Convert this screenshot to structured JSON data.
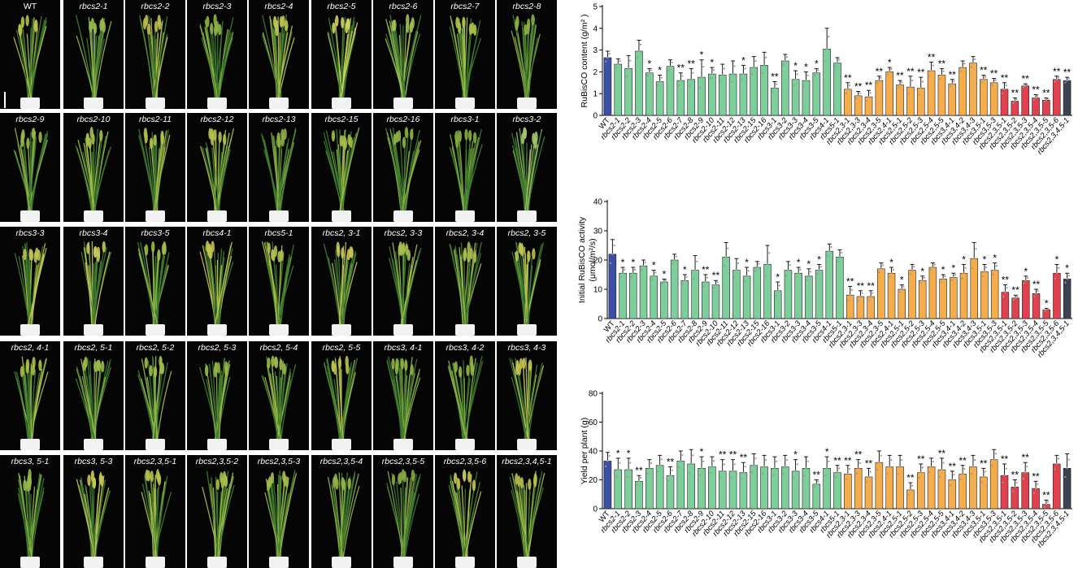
{
  "plants": [
    {
      "label": "WT",
      "tone": "#b8c24a"
    },
    {
      "label": "rbcs2-1",
      "tone": "#98b948"
    },
    {
      "label": "rbcs2-2",
      "tone": "#c0c050"
    },
    {
      "label": "rbcs2-3",
      "tone": "#8fb444"
    },
    {
      "label": "rbcs2-4",
      "tone": "#c2c650"
    },
    {
      "label": "rbcs2-5",
      "tone": "#d2d060"
    },
    {
      "label": "rbcs2-6",
      "tone": "#a0c052"
    },
    {
      "label": "rbcs2-7",
      "tone": "#b0c44c"
    },
    {
      "label": "rbcs2-8",
      "tone": "#8bb042"
    },
    {
      "label": "rbcs2-9",
      "tone": "#9cb84a"
    },
    {
      "label": "rbcs2-10",
      "tone": "#a8c04c"
    },
    {
      "label": "rbcs2-11",
      "tone": "#b4c24e"
    },
    {
      "label": "rbcs2-12",
      "tone": "#b6c250"
    },
    {
      "label": "rbcs2-13",
      "tone": "#8eae46"
    },
    {
      "label": "rbcs2-15",
      "tone": "#a6bc4a"
    },
    {
      "label": "rbcs2-16",
      "tone": "#90b446"
    },
    {
      "label": "rbcs3-1",
      "tone": "#86ac44"
    },
    {
      "label": "rbcs3-2",
      "tone": "#a6c46c"
    },
    {
      "label": "rbcs3-3",
      "tone": "#c0c454"
    },
    {
      "label": "rbcs3-4",
      "tone": "#c8c65a"
    },
    {
      "label": "rbcs3-5",
      "tone": "#9cbc4c"
    },
    {
      "label": "rbcs4-1",
      "tone": "#c4c450"
    },
    {
      "label": "rbcs5-1",
      "tone": "#b2c04c"
    },
    {
      "label": "rbcs2, 3-1",
      "tone": "#c6c456"
    },
    {
      "label": "rbcs2, 3-3",
      "tone": "#a8c04e"
    },
    {
      "label": "rbcs2, 3-4",
      "tone": "#aabe4e"
    },
    {
      "label": "rbcs2, 3-5",
      "tone": "#bec452"
    },
    {
      "label": "rbcs2, 4-1",
      "tone": "#aebe4c"
    },
    {
      "label": "rbcs2, 5-1",
      "tone": "#9cba4a"
    },
    {
      "label": "rbcs2, 5-2",
      "tone": "#a2bc4c"
    },
    {
      "label": "rbcs2, 5-3",
      "tone": "#96b648"
    },
    {
      "label": "rbcs2, 5-4",
      "tone": "#9cba48"
    },
    {
      "label": "rbcs2, 5-5",
      "tone": "#b8c250"
    },
    {
      "label": "rbcs3, 4-1",
      "tone": "#92b446"
    },
    {
      "label": "rbcs3, 4-2",
      "tone": "#94b446"
    },
    {
      "label": "rbcs3, 4-3",
      "tone": "#c2c452"
    },
    {
      "label": "rbcs3, 5-1",
      "tone": "#98b848"
    },
    {
      "label": "rbcs3, 5-3",
      "tone": "#c8c65a"
    },
    {
      "label": "rbcs2,3,5-1",
      "tone": "#b8c24e"
    },
    {
      "label": "rbcs2,3,5-2",
      "tone": "#a8be4c"
    },
    {
      "label": "rbcs2,3,5-3",
      "tone": "#a4bc4c"
    },
    {
      "label": "rbcs2,3,5-4",
      "tone": "#94b444"
    },
    {
      "label": "rbcs2,3,5-5",
      "tone": "#86a844"
    },
    {
      "label": "rbcs2,3,5-6",
      "tone": "#c4c454"
    },
    {
      "label": "rbcs2,3,4,5-1",
      "tone": "#b2c04e"
    }
  ],
  "colors": {
    "wt": "#3a4fa5",
    "single": "#7ccf9a",
    "double": "#f5ad4b",
    "triple": "#e0414e",
    "quad": "#3b4350"
  },
  "chart_data": [
    {
      "type": "bar",
      "ylabel": "RuBisCO content (g/m² )",
      "ylim": [
        0,
        5
      ],
      "yticks": [
        0,
        1,
        2,
        3,
        4,
        5
      ],
      "categories": [
        "WT",
        "rbcs2-1",
        "rbcs2-2",
        "rbcs2-3",
        "rbcs2-4",
        "rbcs2-5",
        "rbcs2-6",
        "rbcs2-7",
        "rbcs2-8",
        "rbcs2-9",
        "rbcs2-10",
        "rbcs2-11",
        "rbcs2-12",
        "rbcs2-13",
        "rbcs2-15",
        "rbcs2-16",
        "rbcs3-1",
        "rbcs3-2",
        "rbcs3-3",
        "rbcs3-4",
        "rbcs3-5",
        "rbcs4-1",
        "rbcs5-1",
        "rbcs2,3-1",
        "rbcs2,3-3",
        "rbcs2,3-4",
        "rbcs2,3-5",
        "rbcs2,4-1",
        "rbcs2,5-1",
        "rbcs2,5-2",
        "rbcs2,5-3",
        "rbcs2,5-4",
        "rbcs2,5-5",
        "rbcs3,4-1",
        "rbcs3,4-2",
        "rbcs3,4-3",
        "rbcs3,5-1",
        "rbcs3,5-3",
        "rbcs2,3,5-1",
        "rbcs2,3,5-2",
        "rbcs2,3,5-3",
        "rbcs2,3,5-4",
        "rbcs2,3,5-5",
        "rbcs2,3,5-6",
        "rbcs2,3,4,5-1"
      ],
      "values": [
        2.65,
        2.35,
        2.15,
        2.95,
        1.95,
        1.55,
        2.25,
        1.6,
        1.65,
        1.75,
        1.9,
        1.85,
        1.9,
        1.9,
        2.2,
        2.3,
        1.25,
        2.5,
        1.65,
        1.6,
        1.95,
        3.05,
        2.4,
        1.2,
        0.9,
        0.85,
        1.6,
        2.0,
        1.4,
        1.3,
        1.25,
        2.05,
        1.85,
        1.45,
        2.2,
        2.4,
        1.65,
        1.5,
        1.2,
        0.65,
        1.35,
        0.8,
        0.7,
        1.65,
        1.6
      ],
      "errors": [
        0.3,
        0.25,
        0.6,
        0.5,
        0.2,
        0.3,
        0.3,
        0.35,
        0.5,
        0.8,
        0.3,
        0.5,
        0.6,
        0.4,
        0.5,
        0.6,
        0.3,
        0.3,
        0.4,
        0.4,
        0.2,
        0.95,
        0.25,
        0.3,
        0.2,
        0.3,
        0.2,
        0.2,
        0.2,
        0.5,
        0.5,
        0.4,
        0.3,
        0.2,
        0.3,
        0.3,
        0.2,
        0.2,
        0.3,
        0.15,
        0.1,
        0.15,
        0.1,
        0.15,
        0.15
      ],
      "significance": [
        "",
        "",
        "",
        "",
        "*",
        "*",
        "",
        "**",
        "**",
        "*",
        "*",
        "",
        "",
        "*",
        "",
        "",
        "**",
        "",
        "*",
        "*",
        "*",
        "",
        "",
        "**",
        "**",
        "**",
        "**",
        "*",
        "**",
        "**",
        "**",
        "**",
        "**",
        "**",
        "",
        "",
        "**",
        "**",
        "**",
        "**",
        "**",
        "**",
        "**",
        "**",
        "**"
      ],
      "groups": [
        "wt",
        "single",
        "single",
        "single",
        "single",
        "single",
        "single",
        "single",
        "single",
        "single",
        "single",
        "single",
        "single",
        "single",
        "single",
        "single",
        "single",
        "single",
        "single",
        "single",
        "single",
        "single",
        "single",
        "double",
        "double",
        "double",
        "double",
        "double",
        "double",
        "double",
        "double",
        "double",
        "double",
        "double",
        "double",
        "double",
        "double",
        "double",
        "triple",
        "triple",
        "triple",
        "triple",
        "triple",
        "triple",
        "quad"
      ]
    },
    {
      "type": "bar",
      "ylabel": "Initial RuBisCO activity",
      "ylabel2": "(μmol/m²/s)",
      "ylim": [
        0,
        40
      ],
      "yticks": [
        0,
        10,
        20,
        30,
        40
      ],
      "categories": [
        "WT",
        "rbcs2-1",
        "rbcs2-2",
        "rbcs2-3",
        "rbcs2-4",
        "rbcs2-5",
        "rbcs2-6",
        "rbcs2-7",
        "rbcs2-8",
        "rbcs2-9",
        "rbcs2-10",
        "rbcs2-11",
        "rbcs2-12",
        "rbcs2-13",
        "rbcs2-15",
        "rbcs2-16",
        "rbcs3-1",
        "rbcs3-2",
        "rbcs3-3",
        "rbcs3-4",
        "rbcs3-5",
        "rbcs4-1",
        "rbcs5-1",
        "rbcs2,3-1",
        "rbcs2,3-3",
        "rbcs2,3-4",
        "rbcs2,3-5",
        "rbcs2,4-1",
        "rbcs2,5-1",
        "rbcs2,5-2",
        "rbcs2,5-3",
        "rbcs2,5-4",
        "rbcs2,5-5",
        "rbcs3,4-1",
        "rbcs3,4-2",
        "rbcs3,4-3",
        "rbcs3,5-1",
        "rbcs3,5-3",
        "rbcs2,3,5-1",
        "rbcs2,3,5-2",
        "rbcs2,3,5-3",
        "rbcs2,3,5-4",
        "rbcs2,3,5-5",
        "rbcs2,3,5-6",
        "rbcs2,3,4,5-1"
      ],
      "values": [
        22,
        15.5,
        15.5,
        18,
        14.5,
        12.5,
        20,
        13,
        16.5,
        12.5,
        11.5,
        21,
        16.5,
        14.5,
        17.5,
        18.5,
        9.5,
        16.5,
        15.5,
        14.5,
        16.5,
        23,
        21,
        8,
        7.5,
        7.5,
        17,
        15.5,
        10,
        16.5,
        13,
        17.5,
        13.5,
        14,
        15.5,
        20.5,
        16,
        16.5,
        9,
        7,
        13,
        8.5,
        3,
        15.5,
        13.5
      ],
      "errors": [
        5,
        2,
        2,
        2,
        2,
        1,
        2,
        2,
        5,
        2.5,
        1.5,
        5,
        4,
        3,
        2,
        6.5,
        3,
        3,
        2,
        2.5,
        2,
        2.5,
        2.5,
        3,
        2,
        2,
        2,
        2,
        1.5,
        2,
        1.5,
        1.5,
        1.5,
        1.5,
        3,
        5.5,
        2.5,
        2.5,
        2.5,
        1,
        1.5,
        1.5,
        0.5,
        3,
        2
      ],
      "significance": [
        "",
        "*",
        "*",
        "",
        "*",
        "*",
        "",
        "*",
        "",
        "**",
        "**",
        "",
        "",
        "*",
        "",
        "",
        "*",
        "",
        "*",
        "*",
        "*",
        "",
        "",
        "**",
        "**",
        "**",
        "",
        "*",
        "*",
        "",
        "*",
        "",
        "*",
        "*",
        "*",
        "",
        "*",
        "*",
        "**",
        "**",
        "*",
        "**",
        "*",
        "*",
        "*"
      ],
      "groups": [
        "wt",
        "single",
        "single",
        "single",
        "single",
        "single",
        "single",
        "single",
        "single",
        "single",
        "single",
        "single",
        "single",
        "single",
        "single",
        "single",
        "single",
        "single",
        "single",
        "single",
        "single",
        "single",
        "single",
        "double",
        "double",
        "double",
        "double",
        "double",
        "double",
        "double",
        "double",
        "double",
        "double",
        "double",
        "double",
        "double",
        "double",
        "double",
        "triple",
        "triple",
        "triple",
        "triple",
        "triple",
        "triple",
        "quad"
      ]
    },
    {
      "type": "bar",
      "ylabel": "Yield per plant (g)",
      "ylim": [
        0,
        80
      ],
      "yticks": [
        0,
        20,
        40,
        60,
        80
      ],
      "categories": [
        "WT",
        "rbcs2-1",
        "rbcs2-2",
        "rbcs2-3",
        "rbcs2-4",
        "rbcs2-5",
        "rbcs2-6",
        "rbcs2-7",
        "rbcs2-8",
        "rbcs2-9",
        "rbcs2-10",
        "rbcs2-11",
        "rbcs2-12",
        "rbcs2-13",
        "rbcs2-15",
        "rbcs2-16",
        "rbcs3-1",
        "rbcs3-2",
        "rbcs3-3",
        "rbcs3-4",
        "rbcs3-5",
        "rbcs4-1",
        "rbcs5-1",
        "rbcs2,3-1",
        "rbcs2,3-3",
        "rbcs2,3-4",
        "rbcs2,3-5",
        "rbcs2,4-1",
        "rbcs2,5-1",
        "rbcs2,5-2",
        "rbcs2,5-3",
        "rbcs2,5-4",
        "rbcs2,5-5",
        "rbcs3,4-1",
        "rbcs3,4-2",
        "rbcs3,4-3",
        "rbcs3,5-1",
        "rbcs3,5-3",
        "rbcs2,3,5-1",
        "rbcs2,3,5-2",
        "rbcs2,3,5-3",
        "rbcs2,3,5-4",
        "rbcs2,3,5-5",
        "rbcs2,3,5-6",
        "rbcs2,3,4,5-1"
      ],
      "values": [
        33,
        27,
        27,
        19,
        28,
        30,
        23,
        33,
        31,
        28,
        29,
        26,
        26,
        25,
        30,
        29,
        28,
        29,
        26,
        28,
        17,
        28,
        25,
        24,
        28,
        22,
        32,
        29,
        29,
        13,
        25,
        29,
        27,
        20,
        24,
        29,
        22,
        34,
        23,
        15,
        25,
        14,
        3,
        31,
        28
      ],
      "errors": [
        6,
        8,
        8,
        4,
        6,
        7,
        6,
        7,
        10,
        8,
        7,
        8,
        8,
        7,
        8,
        8,
        8,
        8,
        8,
        8,
        3,
        8,
        5,
        6,
        6,
        6,
        8,
        8,
        8,
        5,
        6,
        6,
        8,
        6,
        6,
        8,
        6,
        7,
        8,
        5,
        7,
        5,
        3,
        6,
        10
      ],
      "significance": [
        "",
        "*",
        "*",
        "**",
        "",
        "",
        "**",
        "",
        "",
        "*",
        "",
        "**",
        "**",
        "**",
        "",
        "",
        "",
        "",
        "*",
        "",
        "**",
        "*",
        "**",
        "**",
        "**",
        "**",
        "",
        "",
        "",
        "**",
        "**",
        "",
        "**",
        "**",
        "**",
        "",
        "**",
        "",
        "**",
        "**",
        "**",
        "**",
        "**",
        "",
        ""
      ],
      "groups": [
        "wt",
        "single",
        "single",
        "single",
        "single",
        "single",
        "single",
        "single",
        "single",
        "single",
        "single",
        "single",
        "single",
        "single",
        "single",
        "single",
        "single",
        "single",
        "single",
        "single",
        "single",
        "single",
        "single",
        "double",
        "double",
        "double",
        "double",
        "double",
        "double",
        "double",
        "double",
        "double",
        "double",
        "double",
        "double",
        "double",
        "double",
        "double",
        "triple",
        "triple",
        "triple",
        "triple",
        "triple",
        "triple",
        "quad"
      ]
    }
  ]
}
